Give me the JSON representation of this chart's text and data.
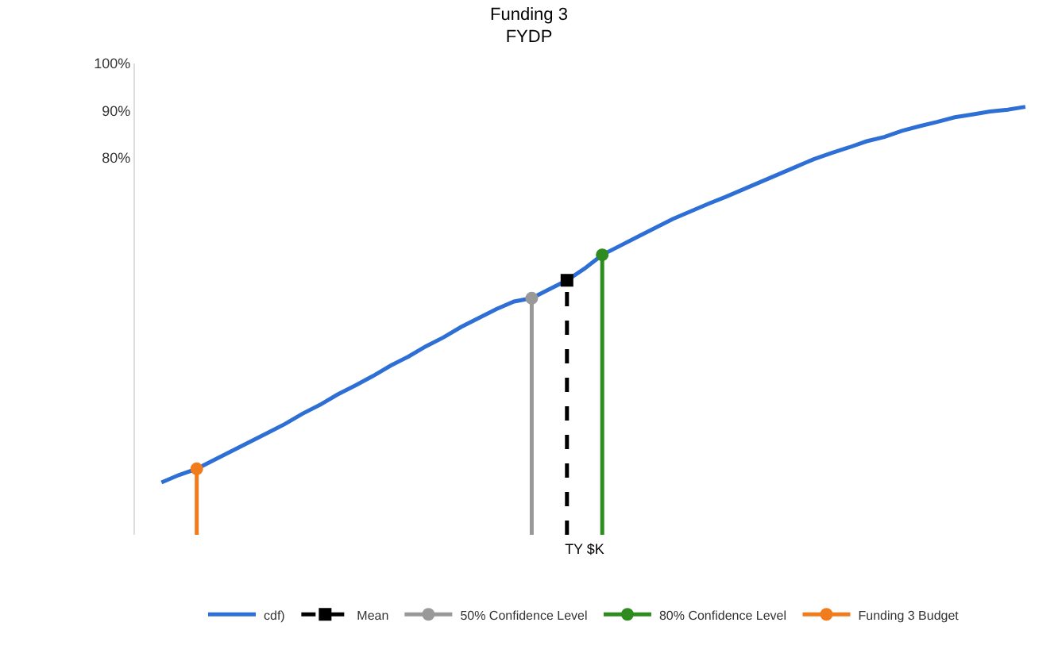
{
  "chart_data": {
    "type": "line",
    "title": "Funding 3\nFYDP",
    "xlabel": "TY $K",
    "categories": [
      null,
      null,
      null,
      null,
      null,
      null,
      null,
      null,
      null,
      null,
      null,
      null,
      null,
      null,
      null,
      null,
      null,
      null,
      null,
      null,
      null,
      null,
      null,
      null,
      null,
      null,
      null,
      null,
      null,
      null,
      null,
      null,
      null,
      null,
      null,
      null,
      null,
      null,
      null,
      null,
      null,
      null,
      null,
      null,
      null,
      null,
      null,
      null,
      null,
      null,
      null
    ],
    "ylim": [
      0,
      100
    ],
    "yticks": [
      {
        "value": 80,
        "label": "80%"
      },
      {
        "value": 90,
        "label": "90%"
      },
      {
        "value": 100,
        "label": "100%"
      }
    ],
    "legend": "bottom",
    "series": [
      {
        "name": "cdf)",
        "color": "#2e6fd6",
        "marker": "none",
        "values": [
          null,
          11.1,
          12.7,
          14.0,
          15.9,
          17.8,
          19.7,
          21.6,
          23.5,
          25.7,
          27.6,
          29.8,
          31.7,
          33.7,
          35.9,
          37.8,
          40.0,
          41.9,
          44.1,
          46.0,
          47.9,
          49.5,
          50.2,
          52.1,
          54.0,
          56.5,
          59.4,
          61.3,
          63.2,
          65.1,
          67.0,
          68.6,
          70.2,
          71.7,
          73.3,
          74.9,
          76.5,
          78.1,
          79.7,
          81.0,
          82.2,
          83.5,
          84.4,
          85.7,
          86.7,
          87.6,
          88.6,
          89.2,
          89.8,
          90.2,
          90.8
        ]
      },
      {
        "name": "Mean",
        "type": "lollipop",
        "color": "#000000",
        "marker": "square",
        "line_style": "dashed",
        "values": [
          null,
          null,
          null,
          null,
          null,
          null,
          null,
          null,
          null,
          null,
          null,
          null,
          null,
          null,
          null,
          null,
          null,
          null,
          null,
          null,
          null,
          null,
          null,
          null,
          54.0,
          null,
          null,
          null,
          null,
          null,
          null,
          null,
          null,
          null,
          null,
          null,
          null,
          null,
          null,
          null,
          null,
          null,
          null,
          null,
          null,
          null,
          null,
          null,
          null,
          null,
          null
        ]
      },
      {
        "name": "50% Confidence Level",
        "type": "lollipop",
        "color": "#999999",
        "marker": "circle",
        "values": [
          null,
          null,
          null,
          null,
          null,
          null,
          null,
          null,
          null,
          null,
          null,
          null,
          null,
          null,
          null,
          null,
          null,
          null,
          null,
          null,
          null,
          null,
          50.2,
          null,
          null,
          null,
          null,
          null,
          null,
          null,
          null,
          null,
          null,
          null,
          null,
          null,
          null,
          null,
          null,
          null,
          null,
          null,
          null,
          null,
          null,
          null,
          null,
          null,
          null,
          null,
          null
        ]
      },
      {
        "name": "80% Confidence Level",
        "type": "lollipop",
        "color": "#2e8b1e",
        "marker": "circle",
        "values": [
          null,
          null,
          null,
          null,
          null,
          null,
          null,
          null,
          null,
          null,
          null,
          null,
          null,
          null,
          null,
          null,
          null,
          null,
          null,
          null,
          null,
          null,
          null,
          null,
          null,
          null,
          59.4,
          null,
          null,
          null,
          null,
          null,
          null,
          null,
          null,
          null,
          null,
          null,
          null,
          null,
          null,
          null,
          null,
          null,
          null,
          null,
          null,
          null,
          null,
          null,
          null
        ]
      },
      {
        "name": "Funding 3 Budget",
        "type": "lollipop",
        "color": "#f07c1e",
        "marker": "circle",
        "values": [
          null,
          null,
          null,
          14.0,
          null,
          null,
          null,
          null,
          null,
          null,
          null,
          null,
          null,
          null,
          null,
          null,
          null,
          null,
          null,
          null,
          null,
          null,
          null,
          null,
          null,
          null,
          null,
          null,
          null,
          null,
          null,
          null,
          null,
          null,
          null,
          null,
          null,
          null,
          null,
          null,
          null,
          null,
          null,
          null,
          null,
          null,
          null,
          null,
          null,
          null,
          null
        ]
      }
    ]
  }
}
